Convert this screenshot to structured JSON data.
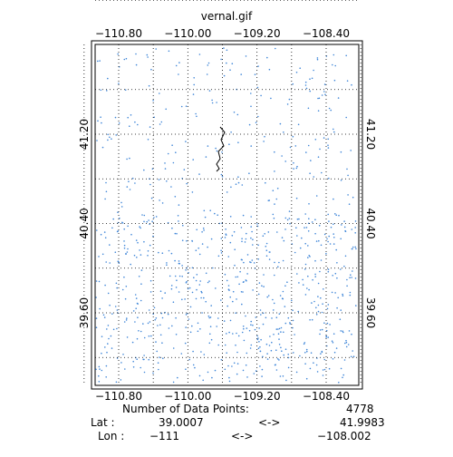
{
  "map": {
    "title": "vernal.gif",
    "lon_ticks": [
      {
        "value": -110.8,
        "label": "−110.80"
      },
      {
        "value": -110.0,
        "label": "−110.00"
      },
      {
        "value": -109.2,
        "label": "−109.20"
      },
      {
        "value": -108.4,
        "label": "−108.40"
      }
    ],
    "lat_ticks": [
      {
        "value": 41.2,
        "label": "41.20"
      },
      {
        "value": 40.4,
        "label": "40.40"
      },
      {
        "value": 39.6,
        "label": "39.60"
      }
    ]
  },
  "footer": {
    "points_label": "Number of Data Points:",
    "points_value": "4778",
    "lat_label": "Lat :",
    "lat_min": "39.0007",
    "lat_arrow": "<->",
    "lat_max": "41.9983",
    "lon_label": "Lon :",
    "lon_min": "−111",
    "lon_arrow": "<->",
    "lon_max": "−108.002"
  }
}
